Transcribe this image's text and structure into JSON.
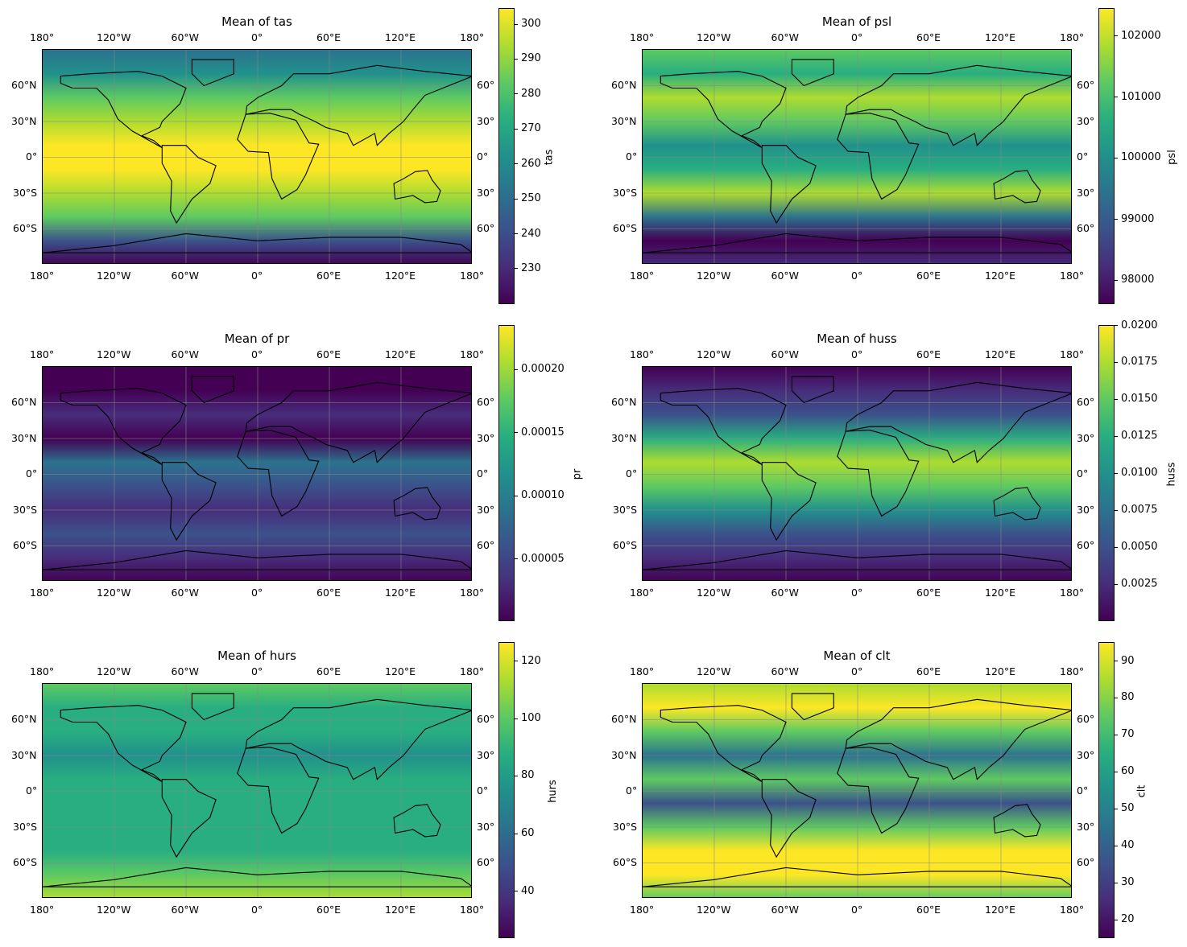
{
  "colormap": [
    "#440154",
    "#472d7b",
    "#3b528b",
    "#2c728e",
    "#21918c",
    "#28ae80",
    "#5ec962",
    "#addc30",
    "#fde725"
  ],
  "lon_ticks": [
    "180°",
    "120°W",
    "60°W",
    "0°",
    "60°E",
    "120°E",
    "180°"
  ],
  "lat_ticks": [
    "60°N",
    "30°N",
    "0°",
    "30°S",
    "60°S"
  ],
  "right_lat_ticks": [
    "60°",
    "30°",
    "0°",
    "30°",
    "60°"
  ],
  "panels": [
    {
      "title": "Mean of tas",
      "var": "tas",
      "ticks": [
        "300",
        "290",
        "280",
        "270",
        "260",
        "250",
        "240",
        "230"
      ],
      "ticks_frac": [
        0.947,
        0.829,
        0.711,
        0.593,
        0.475,
        0.357,
        0.239,
        0.121
      ]
    },
    {
      "title": "Mean of psl",
      "var": "psl",
      "ticks": [
        "102000",
        "101000",
        "100000",
        "99000",
        "98000"
      ],
      "ticks_frac": [
        0.907,
        0.701,
        0.495,
        0.288,
        0.082
      ]
    },
    {
      "title": "Mean of pr",
      "var": "pr",
      "ticks": [
        "0.00020",
        "0.00015",
        "0.00010",
        "0.00005"
      ],
      "ticks_frac": [
        0.851,
        0.638,
        0.424,
        0.211
      ]
    },
    {
      "title": "Mean of huss",
      "var": "huss",
      "ticks": [
        "0.0200",
        "0.0175",
        "0.0150",
        "0.0125",
        "0.0100",
        "0.0075",
        "0.0050",
        "0.0025"
      ],
      "ticks_frac": [
        1.0,
        0.876,
        0.751,
        0.626,
        0.501,
        0.376,
        0.251,
        0.126
      ]
    },
    {
      "title": "Mean of hurs",
      "var": "hurs",
      "ticks": [
        "120",
        "100",
        "80",
        "60",
        "40"
      ],
      "ticks_frac": [
        0.937,
        0.743,
        0.549,
        0.354,
        0.16
      ]
    },
    {
      "title": "Mean of clt",
      "var": "clt",
      "ticks": [
        "90",
        "80",
        "70",
        "60",
        "50",
        "40",
        "30",
        "20"
      ],
      "ticks_frac": [
        0.937,
        0.813,
        0.688,
        0.563,
        0.438,
        0.313,
        0.188,
        0.063
      ]
    }
  ]
}
